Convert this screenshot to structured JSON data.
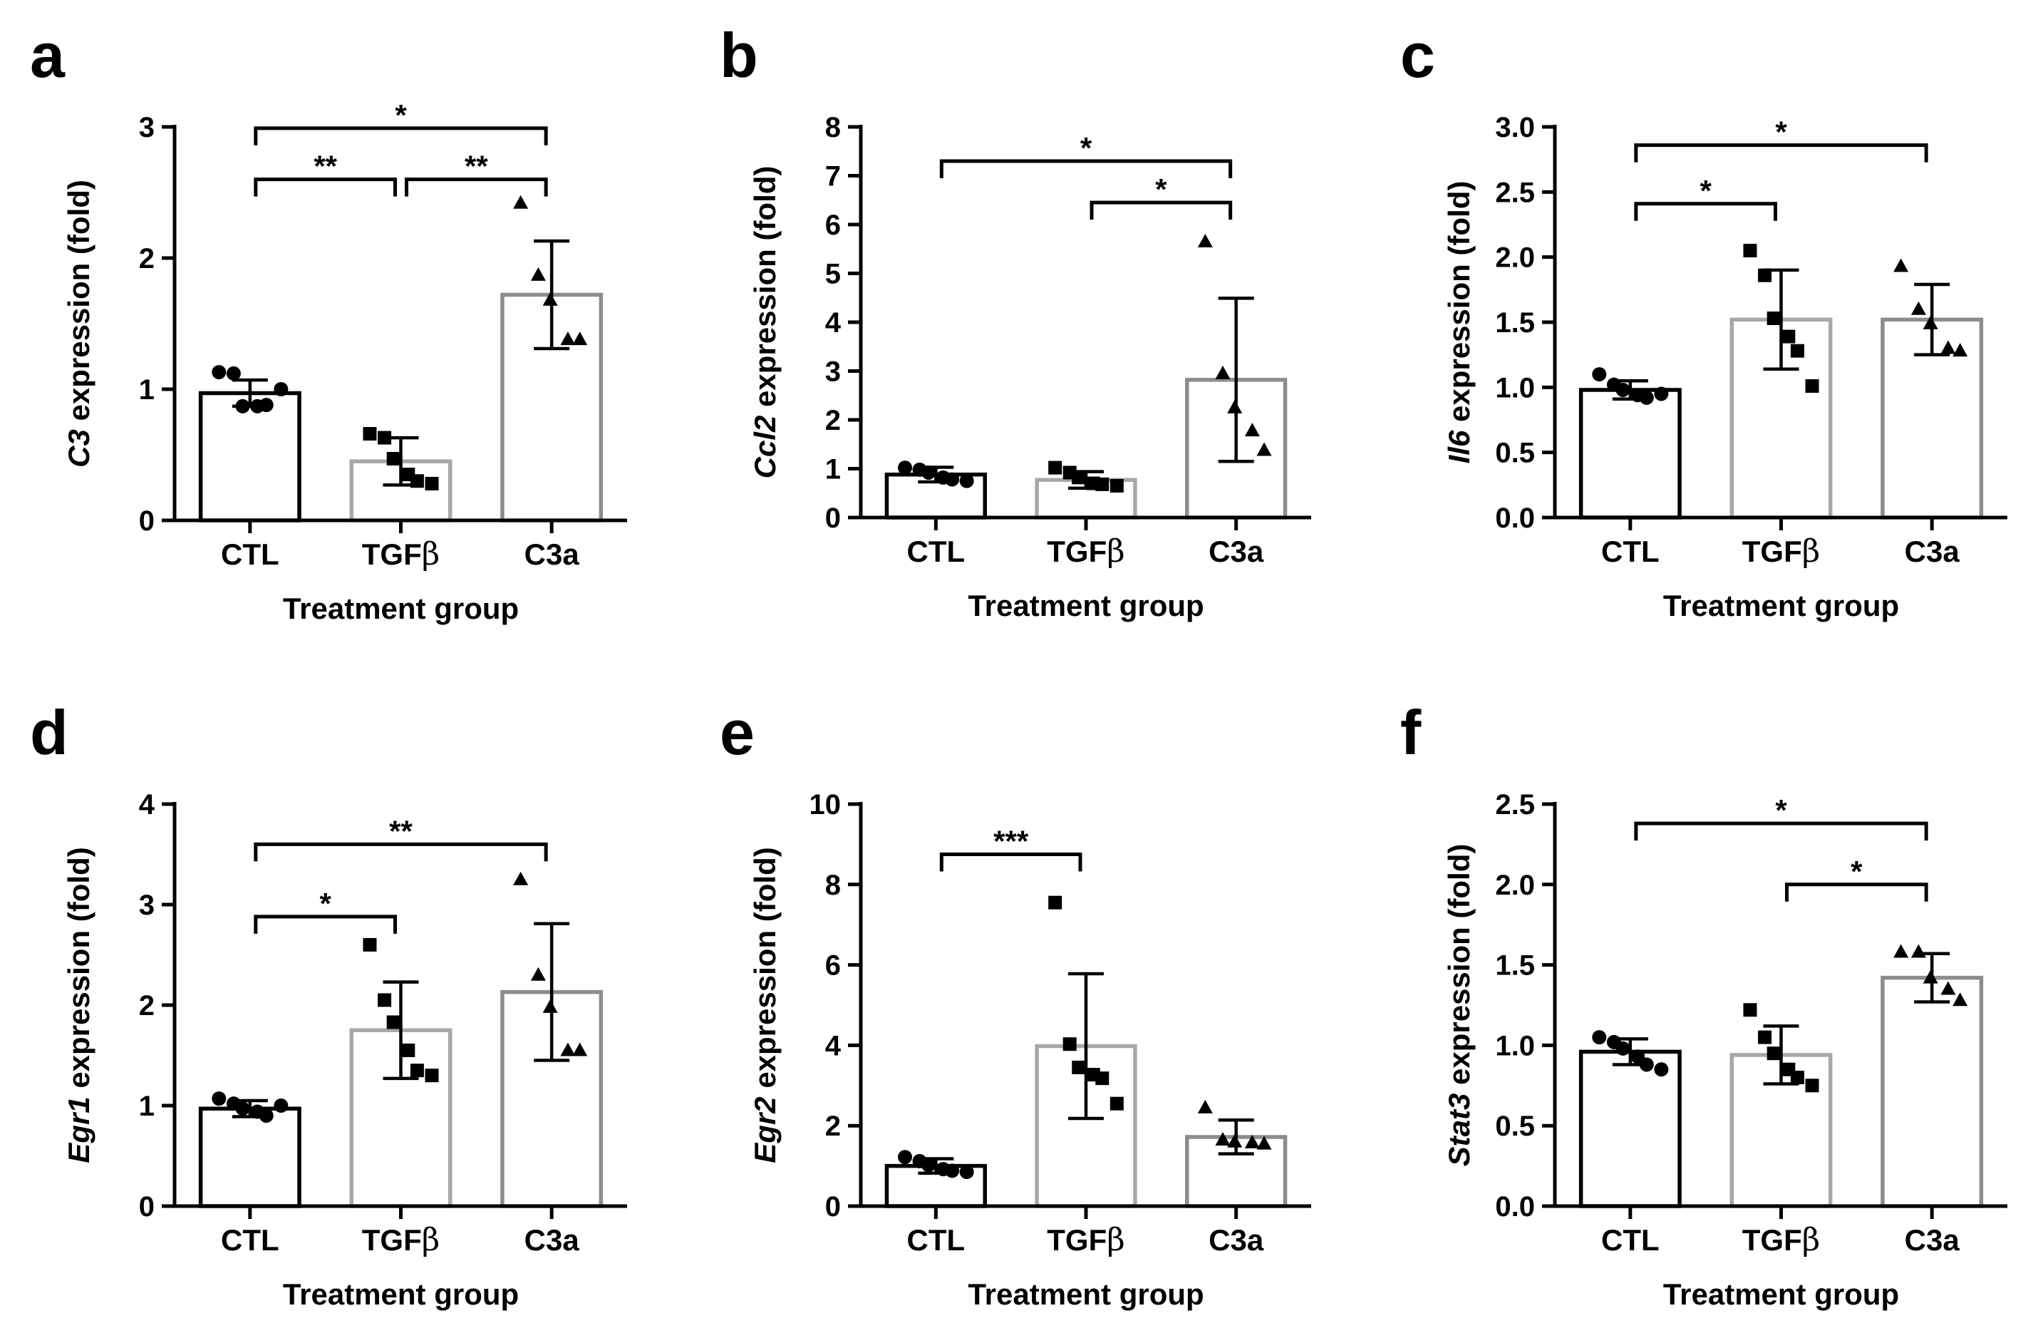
{
  "figure": {
    "panel_letters": [
      "a",
      "b",
      "c",
      "d",
      "e",
      "f"
    ]
  },
  "colors": {
    "CTL": "#000000",
    "TGFb": "#a8a8a8",
    "C3a": "#8c8c8c",
    "marker": "#000000",
    "axis": "#000000"
  },
  "chart_data": [
    {
      "type": "bar",
      "panel": "a",
      "ylabel_gene": "C3",
      "ylabel_rest": " expression (fold)",
      "xlabel": "Treatment group",
      "categories": [
        "CTL",
        "TGF",
        "C3a"
      ],
      "category_beta": [
        "",
        "β",
        ""
      ],
      "ylim": [
        0,
        3
      ],
      "yticks": [
        0,
        1,
        2,
        3
      ],
      "tick_decimals": 0,
      "bars": [
        0.97,
        0.45,
        1.72
      ],
      "errors": [
        0.1,
        0.18,
        0.41
      ],
      "markers": [
        "circle",
        "square",
        "triangle"
      ],
      "points": [
        [
          1.13,
          1.12,
          0.87,
          0.87,
          0.88,
          1.0
        ],
        [
          0.66,
          0.63,
          0.47,
          0.35,
          0.3,
          0.28
        ],
        [
          2.42,
          1.87,
          1.68,
          1.38,
          1.38
        ]
      ],
      "significance": [
        {
          "from": 0,
          "to": 2,
          "label": "*",
          "y": 2.99
        },
        {
          "from": 0,
          "to": 1,
          "label": "**",
          "y": 2.6
        },
        {
          "from": 1,
          "to": 2,
          "label": "**",
          "y": 2.6
        }
      ]
    },
    {
      "type": "bar",
      "panel": "b",
      "ylabel_gene": "Ccl2",
      "ylabel_rest": " expression (fold)",
      "xlabel": "Treatment group",
      "categories": [
        "CTL",
        "TGF",
        "C3a"
      ],
      "category_beta": [
        "",
        "β",
        ""
      ],
      "ylim": [
        0,
        8
      ],
      "yticks": [
        0,
        1,
        2,
        3,
        4,
        5,
        6,
        7,
        8
      ],
      "tick_decimals": 0,
      "bars": [
        0.88,
        0.77,
        2.82
      ],
      "errors": [
        0.15,
        0.17,
        1.67
      ],
      "markers": [
        "circle",
        "square",
        "triangle"
      ],
      "points": [
        [
          1.02,
          0.98,
          0.92,
          0.82,
          0.78,
          0.75
        ],
        [
          1.02,
          0.92,
          0.82,
          0.7,
          0.68,
          0.65
        ],
        [
          5.65,
          2.95,
          2.25,
          1.78,
          1.38
        ]
      ],
      "significance": [
        {
          "from": 0,
          "to": 2,
          "label": "*",
          "y": 7.3
        },
        {
          "from": 1,
          "to": 2,
          "label": "*",
          "y": 6.45
        }
      ]
    },
    {
      "type": "bar",
      "panel": "c",
      "ylabel_gene": "Il6",
      "ylabel_rest": " expression (fold)",
      "xlabel": "Treatment group",
      "categories": [
        "CTL",
        "TGF",
        "C3a"
      ],
      "category_beta": [
        "",
        "β",
        ""
      ],
      "ylim": [
        0,
        3
      ],
      "yticks": [
        0,
        0.5,
        1,
        1.5,
        2,
        2.5,
        3
      ],
      "tick_decimals": 1,
      "bars": [
        0.98,
        1.52,
        1.52
      ],
      "errors": [
        0.07,
        0.38,
        0.27
      ],
      "markers": [
        "circle",
        "square",
        "triangle"
      ],
      "points": [
        [
          1.1,
          1.02,
          0.98,
          0.94,
          0.92,
          0.95
        ],
        [
          2.05,
          1.86,
          1.53,
          1.39,
          1.28,
          1.01
        ],
        [
          1.93,
          1.6,
          1.49,
          1.3,
          1.28
        ]
      ],
      "significance": [
        {
          "from": 0,
          "to": 2,
          "label": "*",
          "y": 2.86
        },
        {
          "from": 0,
          "to": 1,
          "label": "*",
          "y": 2.41
        }
      ]
    },
    {
      "type": "bar",
      "panel": "d",
      "ylabel_gene": "Egr1",
      "ylabel_rest": " expression (fold)",
      "xlabel": "Treatment group",
      "categories": [
        "CTL",
        "TGF",
        "C3a"
      ],
      "category_beta": [
        "",
        "β",
        ""
      ],
      "ylim": [
        0,
        4
      ],
      "yticks": [
        0,
        1,
        2,
        3,
        4
      ],
      "tick_decimals": 0,
      "bars": [
        0.97,
        1.75,
        2.13
      ],
      "errors": [
        0.08,
        0.48,
        0.68
      ],
      "markers": [
        "circle",
        "square",
        "triangle"
      ],
      "points": [
        [
          1.07,
          1.02,
          0.97,
          0.94,
          0.9,
          1.0
        ],
        [
          2.6,
          2.05,
          1.83,
          1.55,
          1.35,
          1.3
        ],
        [
          3.25,
          2.3,
          1.98,
          1.55,
          1.55
        ]
      ],
      "significance": [
        {
          "from": 0,
          "to": 2,
          "label": "**",
          "y": 3.6
        },
        {
          "from": 0,
          "to": 1,
          "label": "*",
          "y": 2.88
        }
      ]
    },
    {
      "type": "bar",
      "panel": "e",
      "ylabel_gene": "Egr2",
      "ylabel_rest": " expression (fold)",
      "xlabel": "Treatment group",
      "categories": [
        "CTL",
        "TGF",
        "C3a"
      ],
      "category_beta": [
        "",
        "β",
        ""
      ],
      "ylim": [
        0,
        10
      ],
      "yticks": [
        0,
        2,
        4,
        6,
        8,
        10
      ],
      "tick_decimals": 0,
      "bars": [
        1.0,
        3.98,
        1.72
      ],
      "errors": [
        0.18,
        1.8,
        0.42
      ],
      "markers": [
        "circle",
        "square",
        "triangle"
      ],
      "points": [
        [
          1.22,
          1.12,
          1.02,
          0.92,
          0.88,
          0.85
        ],
        [
          7.55,
          4.03,
          3.45,
          3.27,
          3.18,
          2.55
        ],
        [
          2.45,
          1.65,
          1.6,
          1.58,
          1.55
        ]
      ],
      "significance": [
        {
          "from": 0,
          "to": 1,
          "label": "***",
          "y": 8.75
        }
      ]
    },
    {
      "type": "bar",
      "panel": "f",
      "ylabel_gene": "Stat3",
      "ylabel_rest": " expression (fold)",
      "xlabel": "Treatment group",
      "categories": [
        "CTL",
        "TGF",
        "C3a"
      ],
      "category_beta": [
        "",
        "β",
        ""
      ],
      "ylim": [
        0,
        2.5
      ],
      "yticks": [
        0,
        0.5,
        1,
        1.5,
        2,
        2.5
      ],
      "tick_decimals": 1,
      "bars": [
        0.96,
        0.94,
        1.42
      ],
      "errors": [
        0.08,
        0.18,
        0.15
      ],
      "markers": [
        "circle",
        "square",
        "triangle"
      ],
      "points": [
        [
          1.05,
          1.02,
          0.98,
          0.93,
          0.88,
          0.85
        ],
        [
          1.22,
          1.05,
          0.95,
          0.85,
          0.8,
          0.75
        ],
        [
          1.58,
          1.58,
          1.42,
          1.35,
          1.28
        ]
      ],
      "significance": [
        {
          "from": 0,
          "to": 2,
          "label": "*",
          "y": 2.38
        },
        {
          "from": 1,
          "to": 2,
          "label": "*",
          "y": 2.0
        }
      ]
    }
  ]
}
